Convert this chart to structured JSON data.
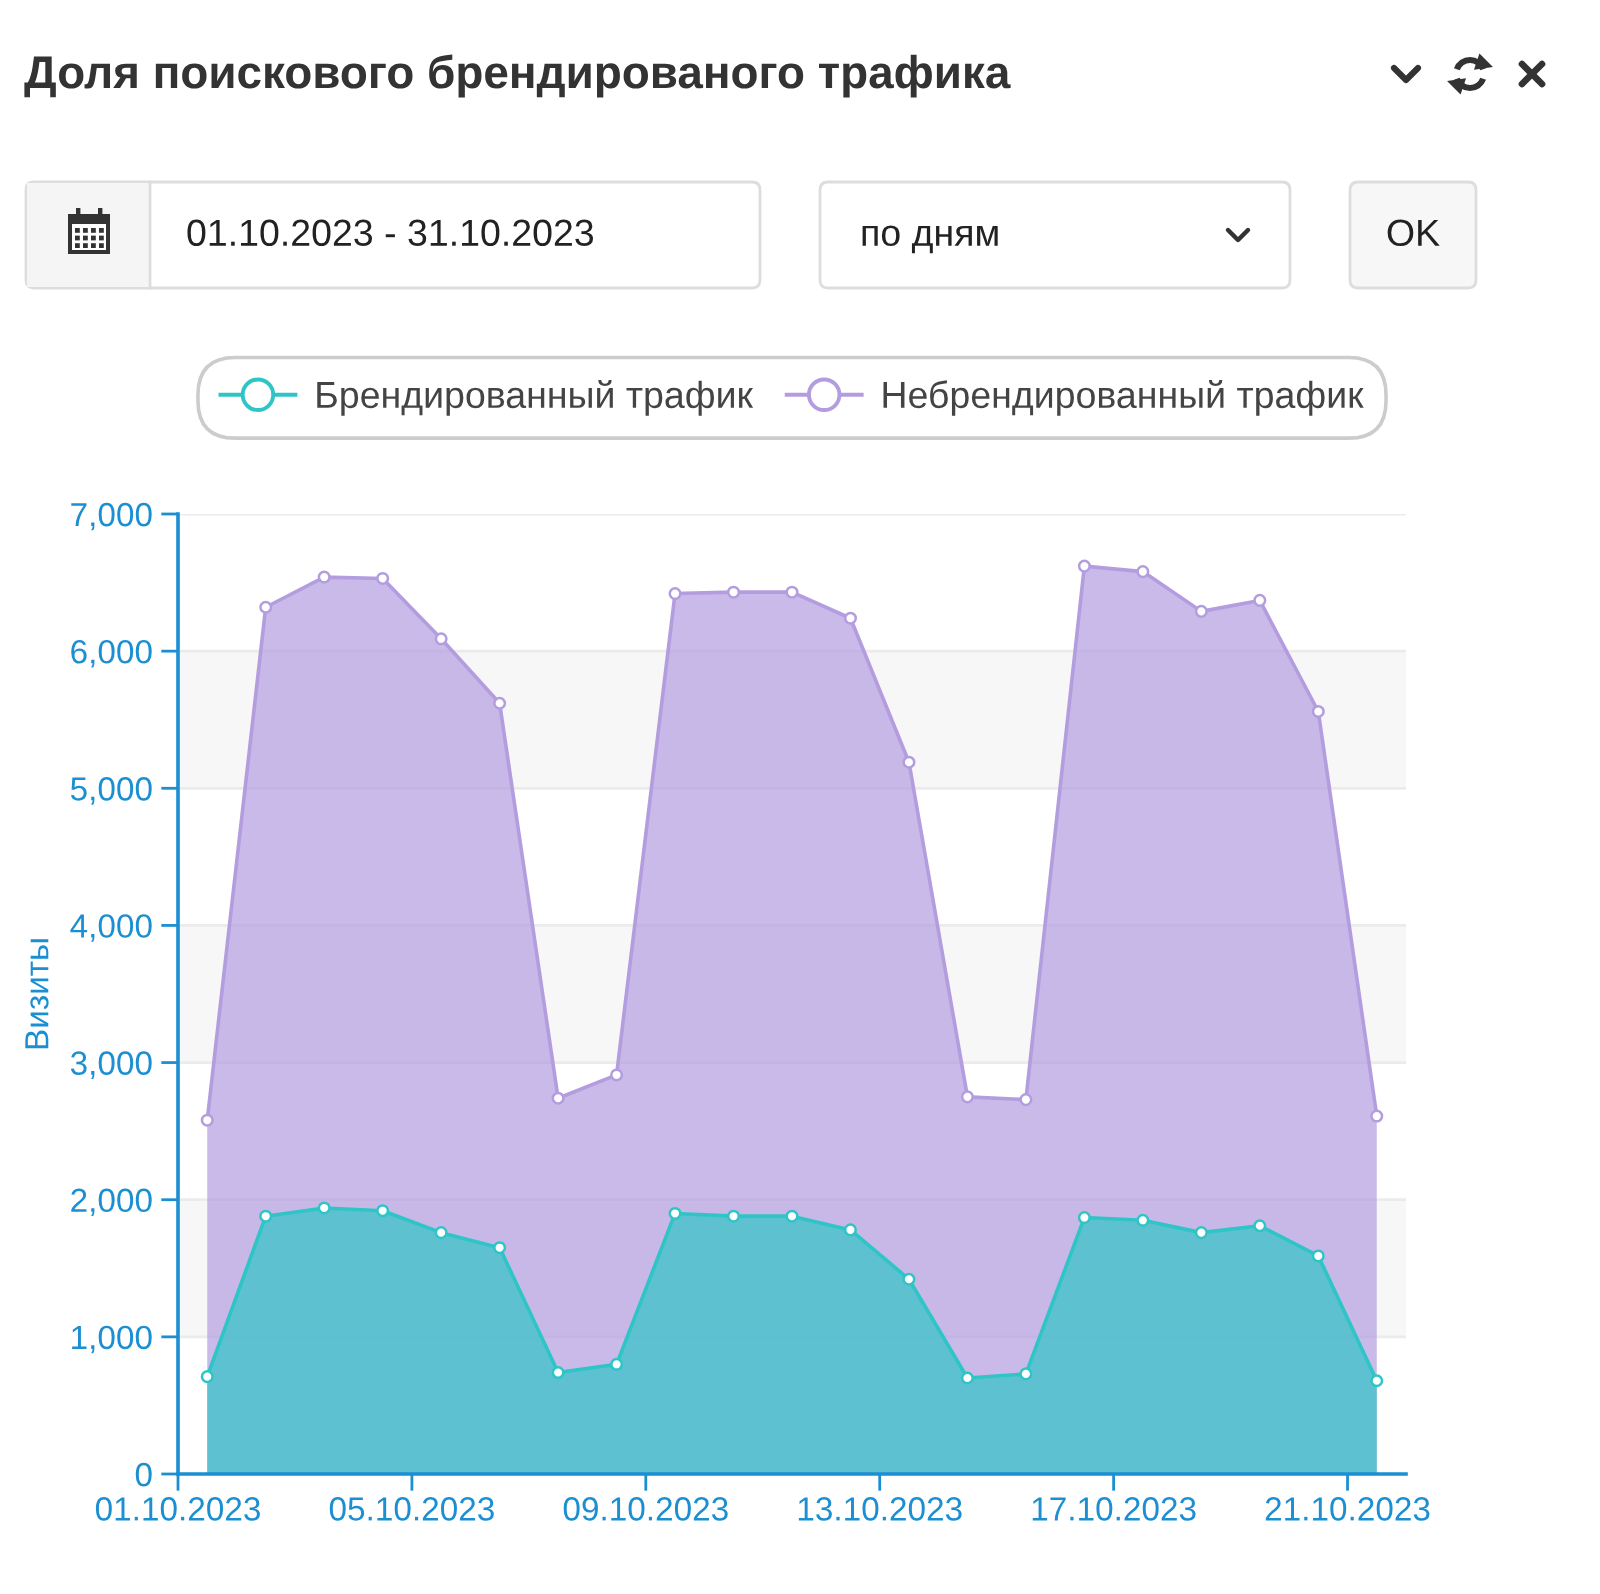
{
  "chart_data": {
    "type": "area",
    "title": "Доля поискового брендированого трафика",
    "ylabel": "Визиты",
    "annotations": [
      "01.10.2023 - 31.10.2023",
      "по дням",
      "OK"
    ],
    "x": [
      "2023-10-01T12:00",
      "2023-10-02T12:00",
      "2023-10-03T12:00",
      "2023-10-04T12:00",
      "2023-10-05T12:00",
      "2023-10-06T12:00",
      "2023-10-07T12:00",
      "2023-10-08T12:00",
      "2023-10-09T12:00",
      "2023-10-10T12:00",
      "2023-10-11T12:00",
      "2023-10-12T12:00",
      "2023-10-13T12:00",
      "2023-10-14T12:00",
      "2023-10-15T12:00",
      "2023-10-16T12:00",
      "2023-10-17T12:00",
      "2023-10-18T12:00",
      "2023-10-19T12:00",
      "2023-10-20T12:00",
      "2023-10-21T12:00"
    ],
    "series": [
      {
        "name": "Брендированный трафик",
        "color": "#2fc5c6",
        "values": [
          710,
          1880,
          1940,
          1920,
          1760,
          1650,
          740,
          800,
          1900,
          1880,
          1880,
          1780,
          1420,
          700,
          730,
          1870,
          1850,
          1760,
          1810,
          1590,
          680
        ]
      },
      {
        "name": "Небрендированный трафик",
        "color": "#b39ddf",
        "values": [
          2580,
          6320,
          6540,
          6530,
          6090,
          5620,
          2740,
          2910,
          6420,
          6430,
          6430,
          6240,
          5190,
          2750,
          2730,
          6620,
          6580,
          6290,
          6370,
          5560,
          2610
        ]
      }
    ],
    "xlim": [
      "2023-10-01",
      "2023-10-22"
    ],
    "xticks": [
      {
        "value": "2023-10-01",
        "label": "01.10.2023"
      },
      {
        "value": "2023-10-05",
        "label": "05.10.2023"
      },
      {
        "value": "2023-10-09",
        "label": "09.10.2023"
      },
      {
        "value": "2023-10-13",
        "label": "13.10.2023"
      },
      {
        "value": "2023-10-17",
        "label": "17.10.2023"
      },
      {
        "value": "2023-10-21",
        "label": "21.10.2023"
      }
    ],
    "ylim": [
      0,
      7000
    ],
    "yticks": [
      0,
      {
        "value": 1000,
        "label": "1,000"
      },
      {
        "value": 2000,
        "label": "2,000"
      },
      {
        "value": 3000,
        "label": "3,000"
      },
      {
        "value": 4000,
        "label": "4,000"
      },
      {
        "value": 5000,
        "label": "5,000"
      },
      {
        "value": 6000,
        "label": "6,000"
      },
      {
        "value": 7000,
        "label": "7,000"
      }
    ],
    "grid": "y",
    "bands": [
      {
        "axis": "y",
        "from": 1000,
        "to": 2000,
        "color": "#f7f7f7"
      },
      {
        "axis": "y",
        "from": 3000,
        "to": 4000,
        "color": "#f7f7f7"
      },
      {
        "axis": "y",
        "from": 5000,
        "to": 6000,
        "color": "#f7f7f7"
      }
    ],
    "legend": "top",
    "marker": "circle",
    "line_style": "solid"
  }
}
